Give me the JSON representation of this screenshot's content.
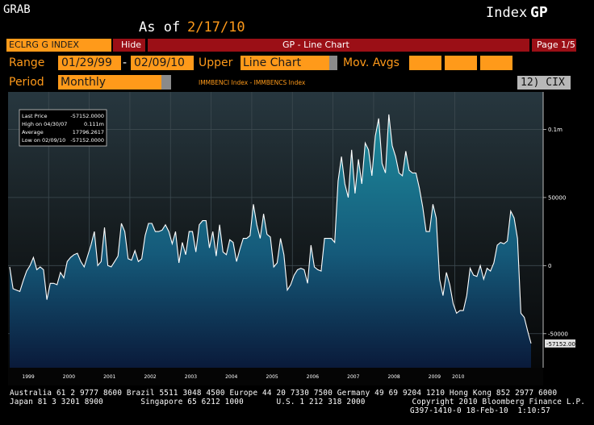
{
  "header": {
    "left_title": "GRAB",
    "as_of_label": "As of",
    "as_of_date": "2/17/10",
    "index_label": "Index",
    "function_code": "GP"
  },
  "toolbar": {
    "ticker": "ECLRG G INDEX",
    "hide_label": "Hide",
    "chart_title": "GP - Line Chart",
    "page_label": "Page 1/5"
  },
  "controls": {
    "range_label": "Range",
    "start_date": "01/29/99",
    "dash": "-",
    "end_date": "02/09/10",
    "upper_label": "Upper",
    "upper_value": "Line Chart",
    "mov_avgs_label": "Mov. Avgs",
    "mov_avg_values": [
      "",
      "",
      ""
    ],
    "period_label": "Period",
    "period_value": "Monthly",
    "subtitle": "IMMBENCI Index - IMMBENCS Index",
    "cix_label": "12)  CIX"
  },
  "stats": {
    "rows": [
      {
        "label": "Last Price",
        "value": "-57152.0000"
      },
      {
        "label": "High on 04/30/07",
        "value": "0.111m"
      },
      {
        "label": "Average",
        "value": "17796.2617"
      },
      {
        "label": "Low on 02/09/10",
        "value": "-57152.0000"
      }
    ]
  },
  "last_value_tag": "-57152.0000",
  "footer": {
    "line1": "Australia 61 2 9777 8600 Brazil 5511 3048 4500 Europe 44 20 7330 7500 Germany 49 69 9204 1210 Hong Kong 852 2977 6000",
    "line2": "Japan 81 3 3201 8900        Singapore 65 6212 1000       U.S. 1 212 318 2000          Copyright 2010 Bloomberg Finance L.P.",
    "line3": "G397-1410-0 18-Feb-10  1:10:57"
  },
  "colors": {
    "accent_orange": "#ff9a1a",
    "toolbar_red": "#9b0f16",
    "line": "#ffffff",
    "area_top": "#1d8b9c",
    "area_bottom": "#0a1a3a"
  },
  "chart_data": {
    "type": "area",
    "title": "",
    "xlabel": "",
    "ylabel": "",
    "ylim": [
      -75000,
      127500
    ],
    "yticks": [
      100000,
      50000,
      0,
      -50000
    ],
    "ytick_labels": [
      "0.1m",
      "50000",
      "0",
      "-50000"
    ],
    "xtick_labels": [
      "1999",
      "2000",
      "2001",
      "2002",
      "2003",
      "2004",
      "2005",
      "2006",
      "2007",
      "2008",
      "2009",
      "2010"
    ],
    "grid": true,
    "series": [
      {
        "name": "",
        "x_start": "1999-01",
        "frequency": "monthly",
        "values": [
          -1000,
          -17000,
          -18000,
          -19000,
          -11000,
          -4000,
          0,
          6000,
          -3000,
          -1000,
          -3000,
          -25000,
          -13000,
          -13000,
          -14000,
          -5000,
          -9000,
          3000,
          6000,
          8000,
          9000,
          3000,
          -1000,
          7000,
          15000,
          25000,
          0,
          3000,
          28000,
          0,
          -1000,
          3000,
          7000,
          31000,
          25000,
          5000,
          4000,
          11000,
          3000,
          5000,
          22000,
          31000,
          31000,
          25000,
          25000,
          26000,
          30000,
          25000,
          16000,
          25000,
          2000,
          17000,
          8000,
          25000,
          25000,
          10000,
          30000,
          33000,
          33000,
          13000,
          25000,
          7000,
          30000,
          10000,
          8000,
          19000,
          17000,
          3000,
          12000,
          20000,
          20000,
          22000,
          45000,
          30000,
          20000,
          38000,
          23000,
          21000,
          -1000,
          2000,
          20000,
          8000,
          -18000,
          -14000,
          -7000,
          -3000,
          -2000,
          -3000,
          -13000,
          15000,
          -1000,
          -3000,
          -4000,
          20000,
          20000,
          20000,
          17000,
          62000,
          80000,
          60000,
          50000,
          85000,
          53000,
          78000,
          60000,
          90000,
          85000,
          66000,
          95000,
          108000,
          75000,
          68000,
          111000,
          88000,
          80000,
          68000,
          66000,
          84000,
          70000,
          68000,
          68000,
          57000,
          43000,
          25000,
          25000,
          45000,
          35000,
          -10000,
          -22000,
          -5000,
          -14000,
          -28000,
          -35000,
          -33000,
          -33000,
          -22000,
          -2000,
          -7000,
          -8000,
          0,
          -10000,
          -2000,
          -4000,
          2000,
          15000,
          17000,
          16000,
          18000,
          40000,
          35000,
          20000,
          -35000,
          -38000,
          -48000,
          -57152
        ]
      }
    ],
    "annotations": {
      "high": {
        "date": "04/30/07",
        "value": 111000
      },
      "low": {
        "date": "02/09/10",
        "value": -57152
      },
      "last": -57152,
      "average": 17796.2617
    }
  }
}
